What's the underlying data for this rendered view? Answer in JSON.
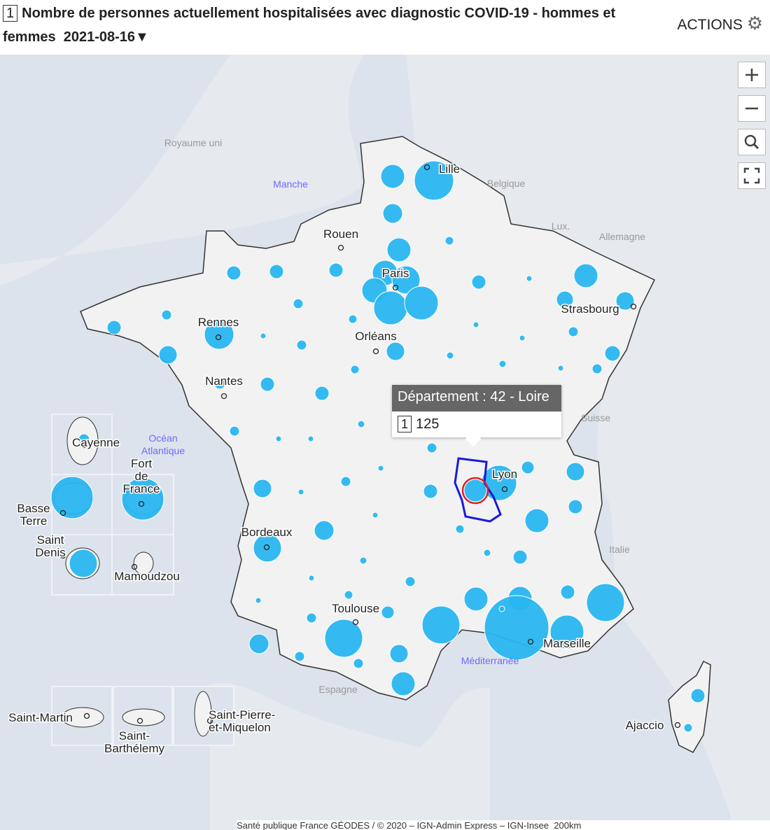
{
  "header": {
    "layer": "1",
    "title": "Nombre de personnes actuellement hospitalisées avec diagnostic COVID-19 - hommes et femmes",
    "date": "2021-08-16",
    "actions": "ACTIONS"
  },
  "map": {
    "places": [
      {
        "lines": [
          "Lille"
        ]
      },
      {
        "lines": [
          "Rouen"
        ]
      },
      {
        "lines": [
          "Paris"
        ]
      },
      {
        "lines": [
          "Rennes"
        ]
      },
      {
        "lines": [
          "Orléans"
        ]
      },
      {
        "lines": [
          "Strasbourg"
        ]
      },
      {
        "lines": [
          "Nantes"
        ]
      },
      {
        "lines": [
          "Lyon"
        ]
      },
      {
        "lines": [
          "Bordeaux"
        ]
      },
      {
        "lines": [
          "Toulouse"
        ]
      },
      {
        "lines": [
          "Marseille"
        ]
      },
      {
        "lines": [
          "Ajaccio"
        ]
      },
      {
        "lines": [
          "Cayenne"
        ]
      },
      {
        "lines": [
          "Fort",
          "de",
          "France"
        ]
      },
      {
        "lines": [
          "Basse",
          "Terre"
        ]
      },
      {
        "lines": [
          "Saint",
          "Denis"
        ]
      },
      {
        "lines": [
          "Mamoudzou"
        ]
      },
      {
        "lines": [
          "Saint-Martin"
        ]
      },
      {
        "lines": [
          "Saint-",
          "Barthélemy"
        ]
      },
      {
        "lines": [
          "Saint-Pierre-",
          "et-Miquelon"
        ]
      }
    ],
    "countries": [
      {
        "lines": [
          "Royaume uni"
        ]
      },
      {
        "lines": [
          "Belgique"
        ]
      },
      {
        "lines": [
          "Lux."
        ]
      },
      {
        "lines": [
          "Allemagne"
        ]
      },
      {
        "lines": [
          "Suisse"
        ]
      },
      {
        "lines": [
          "Italie"
        ]
      },
      {
        "lines": [
          "Espagne"
        ]
      }
    ],
    "seas": [
      {
        "lines": [
          "Manche"
        ]
      },
      {
        "lines": [
          "Océan",
          "Atlantique"
        ]
      },
      {
        "lines": [
          "Méditerranée"
        ]
      }
    ]
  },
  "tooltip": {
    "title": "Département : 42 - Loire",
    "layer": "1",
    "value": 125
  },
  "attribution": "Santé publique France GÉODES / © 2020 – IGN-Admin Express – IGN-Insee",
  "scale": "200km"
}
